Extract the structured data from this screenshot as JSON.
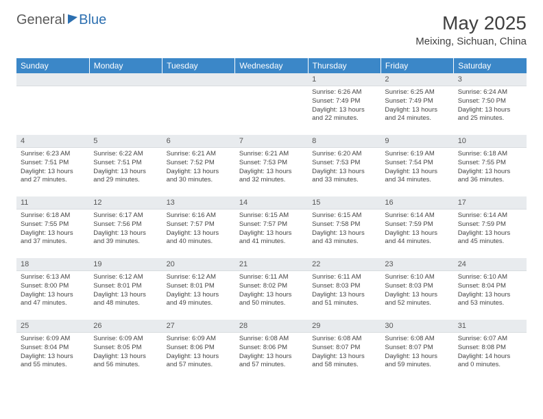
{
  "brand": {
    "part1": "General",
    "part2": "Blue"
  },
  "title": "May 2025",
  "location": "Meixing, Sichuan, China",
  "colors": {
    "header_bg": "#3b87c8",
    "header_text": "#ffffff",
    "daynum_bg": "#e8ebee",
    "body_text": "#444444",
    "title_text": "#404040",
    "brand_gray": "#5a5a5a",
    "brand_blue": "#2c6fb0"
  },
  "typography": {
    "title_fontsize": 28,
    "location_fontsize": 15,
    "th_fontsize": 12,
    "daynum_fontsize": 11,
    "cell_fontsize": 9.5
  },
  "weekdays": [
    "Sunday",
    "Monday",
    "Tuesday",
    "Wednesday",
    "Thursday",
    "Friday",
    "Saturday"
  ],
  "weeks": [
    [
      {
        "empty": true
      },
      {
        "empty": true
      },
      {
        "empty": true
      },
      {
        "empty": true
      },
      {
        "n": "1",
        "sunrise": "6:26 AM",
        "sunset": "7:49 PM",
        "dl_h": "13",
        "dl_m": "22"
      },
      {
        "n": "2",
        "sunrise": "6:25 AM",
        "sunset": "7:49 PM",
        "dl_h": "13",
        "dl_m": "24"
      },
      {
        "n": "3",
        "sunrise": "6:24 AM",
        "sunset": "7:50 PM",
        "dl_h": "13",
        "dl_m": "25"
      }
    ],
    [
      {
        "n": "4",
        "sunrise": "6:23 AM",
        "sunset": "7:51 PM",
        "dl_h": "13",
        "dl_m": "27"
      },
      {
        "n": "5",
        "sunrise": "6:22 AM",
        "sunset": "7:51 PM",
        "dl_h": "13",
        "dl_m": "29"
      },
      {
        "n": "6",
        "sunrise": "6:21 AM",
        "sunset": "7:52 PM",
        "dl_h": "13",
        "dl_m": "30"
      },
      {
        "n": "7",
        "sunrise": "6:21 AM",
        "sunset": "7:53 PM",
        "dl_h": "13",
        "dl_m": "32"
      },
      {
        "n": "8",
        "sunrise": "6:20 AM",
        "sunset": "7:53 PM",
        "dl_h": "13",
        "dl_m": "33"
      },
      {
        "n": "9",
        "sunrise": "6:19 AM",
        "sunset": "7:54 PM",
        "dl_h": "13",
        "dl_m": "34"
      },
      {
        "n": "10",
        "sunrise": "6:18 AM",
        "sunset": "7:55 PM",
        "dl_h": "13",
        "dl_m": "36"
      }
    ],
    [
      {
        "n": "11",
        "sunrise": "6:18 AM",
        "sunset": "7:55 PM",
        "dl_h": "13",
        "dl_m": "37"
      },
      {
        "n": "12",
        "sunrise": "6:17 AM",
        "sunset": "7:56 PM",
        "dl_h": "13",
        "dl_m": "39"
      },
      {
        "n": "13",
        "sunrise": "6:16 AM",
        "sunset": "7:57 PM",
        "dl_h": "13",
        "dl_m": "40"
      },
      {
        "n": "14",
        "sunrise": "6:15 AM",
        "sunset": "7:57 PM",
        "dl_h": "13",
        "dl_m": "41"
      },
      {
        "n": "15",
        "sunrise": "6:15 AM",
        "sunset": "7:58 PM",
        "dl_h": "13",
        "dl_m": "43"
      },
      {
        "n": "16",
        "sunrise": "6:14 AM",
        "sunset": "7:59 PM",
        "dl_h": "13",
        "dl_m": "44"
      },
      {
        "n": "17",
        "sunrise": "6:14 AM",
        "sunset": "7:59 PM",
        "dl_h": "13",
        "dl_m": "45"
      }
    ],
    [
      {
        "n": "18",
        "sunrise": "6:13 AM",
        "sunset": "8:00 PM",
        "dl_h": "13",
        "dl_m": "47"
      },
      {
        "n": "19",
        "sunrise": "6:12 AM",
        "sunset": "8:01 PM",
        "dl_h": "13",
        "dl_m": "48"
      },
      {
        "n": "20",
        "sunrise": "6:12 AM",
        "sunset": "8:01 PM",
        "dl_h": "13",
        "dl_m": "49"
      },
      {
        "n": "21",
        "sunrise": "6:11 AM",
        "sunset": "8:02 PM",
        "dl_h": "13",
        "dl_m": "50"
      },
      {
        "n": "22",
        "sunrise": "6:11 AM",
        "sunset": "8:03 PM",
        "dl_h": "13",
        "dl_m": "51"
      },
      {
        "n": "23",
        "sunrise": "6:10 AM",
        "sunset": "8:03 PM",
        "dl_h": "13",
        "dl_m": "52"
      },
      {
        "n": "24",
        "sunrise": "6:10 AM",
        "sunset": "8:04 PM",
        "dl_h": "13",
        "dl_m": "53"
      }
    ],
    [
      {
        "n": "25",
        "sunrise": "6:09 AM",
        "sunset": "8:04 PM",
        "dl_h": "13",
        "dl_m": "55"
      },
      {
        "n": "26",
        "sunrise": "6:09 AM",
        "sunset": "8:05 PM",
        "dl_h": "13",
        "dl_m": "56"
      },
      {
        "n": "27",
        "sunrise": "6:09 AM",
        "sunset": "8:06 PM",
        "dl_h": "13",
        "dl_m": "57"
      },
      {
        "n": "28",
        "sunrise": "6:08 AM",
        "sunset": "8:06 PM",
        "dl_h": "13",
        "dl_m": "57"
      },
      {
        "n": "29",
        "sunrise": "6:08 AM",
        "sunset": "8:07 PM",
        "dl_h": "13",
        "dl_m": "58"
      },
      {
        "n": "30",
        "sunrise": "6:08 AM",
        "sunset": "8:07 PM",
        "dl_h": "13",
        "dl_m": "59"
      },
      {
        "n": "31",
        "sunrise": "6:07 AM",
        "sunset": "8:08 PM",
        "dl_h": "14",
        "dl_m": "0"
      }
    ]
  ],
  "labels": {
    "sunrise": "Sunrise:",
    "sunset": "Sunset:",
    "daylight": "Daylight:",
    "hours": "hours",
    "and": "and",
    "minutes": "minutes."
  }
}
